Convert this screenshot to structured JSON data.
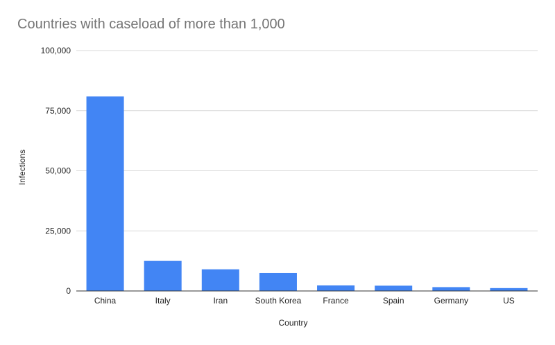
{
  "chart_data": {
    "type": "bar",
    "title": "Countries with caseload of more than 1,000",
    "xlabel": "Country",
    "ylabel": "Infections",
    "categories": [
      "China",
      "Italy",
      "Iran",
      "South Korea",
      "France",
      "Spain",
      "Germany",
      "US"
    ],
    "values": [
      80900,
      12500,
      9000,
      7500,
      2300,
      2200,
      1600,
      1200
    ],
    "ylim": [
      0,
      100000
    ],
    "yticks": [
      "0",
      "25,000",
      "50,000",
      "75,000",
      "100,000"
    ],
    "ytick_values": [
      0,
      25000,
      50000,
      75000,
      100000
    ],
    "grid": true,
    "legend": "none",
    "colors": {
      "bar": "#4285f4",
      "grid": "#d9d9d9",
      "axis": "#333333",
      "tick_text": "#222222",
      "title": "#757575"
    }
  }
}
